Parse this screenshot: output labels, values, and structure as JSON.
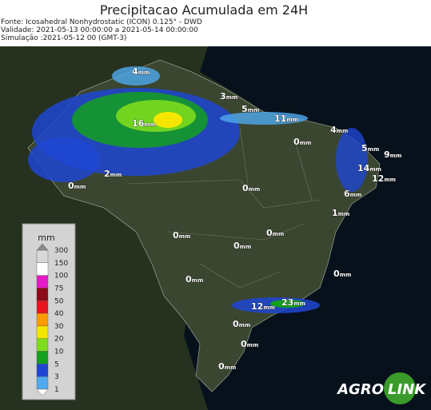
{
  "header": {
    "title": "Precipitacao Acumulada em 24H",
    "lines": [
      "Fonte: Icosahedral Nonhydrostatic (ICON) 0.125° - DWD",
      "Validade: 2021-05-13 00:00:00 a 2021-05-14 00:00:00",
      "Simulação :2021-05-12 00 (GMT-3)"
    ]
  },
  "legend": {
    "title": "mm",
    "items": [
      {
        "label": "300",
        "color": "#8a8a8a"
      },
      {
        "label": "150",
        "color": "#d9d9d9"
      },
      {
        "label": "100",
        "color": "#ffffff"
      },
      {
        "label": "75",
        "color": "#e619c8"
      },
      {
        "label": "50",
        "color": "#8b0a1a"
      },
      {
        "label": "40",
        "color": "#e8141e"
      },
      {
        "label": "30",
        "color": "#ff9a00"
      },
      {
        "label": "20",
        "color": "#f5e600"
      },
      {
        "label": "10",
        "color": "#7ddc1e"
      },
      {
        "label": "5",
        "color": "#14a01e"
      },
      {
        "label": "3",
        "color": "#1e46d2"
      },
      {
        "label": "1",
        "color": "#50aaf0"
      }
    ]
  },
  "map": {
    "labels": [
      {
        "value": "4",
        "unit": "mm"
      },
      {
        "value": "3",
        "unit": "mm"
      },
      {
        "value": "5",
        "unit": "mm"
      },
      {
        "value": "11",
        "unit": "mm"
      },
      {
        "value": "16",
        "unit": "mm"
      },
      {
        "value": "4",
        "unit": "mm"
      },
      {
        "value": "0",
        "unit": "mm"
      },
      {
        "value": "5",
        "unit": "mm"
      },
      {
        "value": "9",
        "unit": "mm"
      },
      {
        "value": "14",
        "unit": "mm"
      },
      {
        "value": "12",
        "unit": "mm"
      },
      {
        "value": "2",
        "unit": "mm"
      },
      {
        "value": "0",
        "unit": "mm"
      },
      {
        "value": "0",
        "unit": "mm"
      },
      {
        "value": "6",
        "unit": "mm"
      },
      {
        "value": "1",
        "unit": "mm"
      },
      {
        "value": "0",
        "unit": "mm"
      },
      {
        "value": "0",
        "unit": "mm"
      },
      {
        "value": "0",
        "unit": "mm"
      },
      {
        "value": "0",
        "unit": "mm"
      },
      {
        "value": "0",
        "unit": "mm"
      },
      {
        "value": "12",
        "unit": "mm"
      },
      {
        "value": "23",
        "unit": "mm"
      },
      {
        "value": "0",
        "unit": "mm"
      },
      {
        "value": "0",
        "unit": "mm"
      },
      {
        "value": "0",
        "unit": "mm"
      }
    ]
  },
  "logo": {
    "left": "AGRO",
    "right": "LINK"
  }
}
